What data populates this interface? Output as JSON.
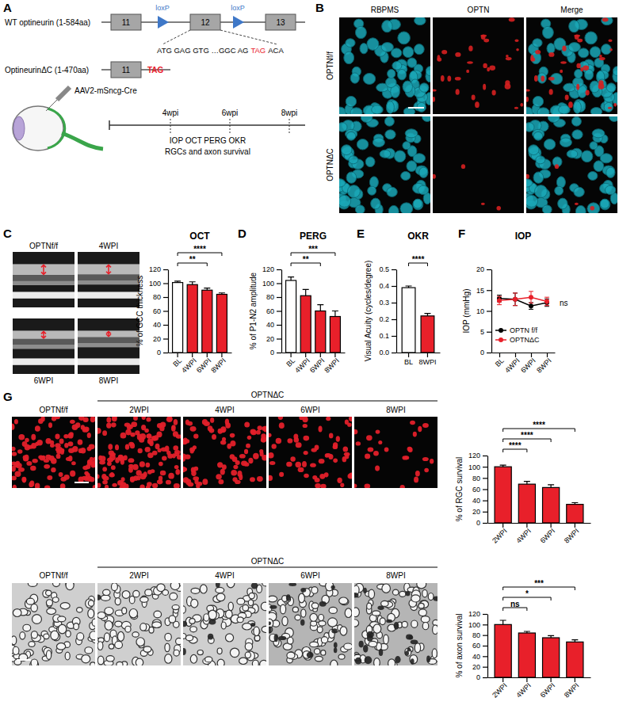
{
  "figure": {
    "panel_labels": [
      "A",
      "B",
      "C",
      "D",
      "E",
      "F",
      "G"
    ],
    "A": {
      "wt_label": "WT optineurin (1-584aa)",
      "exons": [
        "11",
        "12",
        "13"
      ],
      "loxp": "loxP",
      "sequence": "ATG GAG GTG …GGC AG",
      "stop": "TAG",
      "after_stop": "ACA",
      "dc_label": "OptineurinΔC (1-470aa)",
      "dc_exon": "11",
      "dc_stop": "TAG",
      "virus": "AAV2-mSncg-Cre",
      "timepoints": [
        "4wpi",
        "6wpi",
        "8wpi"
      ],
      "assays": "IOP OCT PERG OKR",
      "survival": "RGCs and axon survival"
    },
    "B": {
      "columns": [
        "RBPMS",
        "OPTN",
        "Merge"
      ],
      "rows": [
        "OPTNf/f",
        "OPTNΔC"
      ]
    },
    "C_images": [
      "OPTNf/f",
      "4WPI",
      "6WPI",
      "8WPI"
    ],
    "G": {
      "group": "OPTNΔC",
      "columns": [
        "OPTNf/f",
        "2WPI",
        "4WPI",
        "6WPI",
        "8WPI"
      ]
    }
  },
  "chart_data": [
    {
      "type": "bar",
      "title": "OCT",
      "y_label": "% of GCC thickness",
      "categories": [
        "BL",
        "4WPI",
        "6WPI",
        "8WPI"
      ],
      "values": [
        101,
        98,
        90,
        84
      ],
      "errors": [
        2,
        4,
        3,
        2
      ],
      "colors": [
        "#ffffff",
        "#e8202a",
        "#e8202a",
        "#e8202a"
      ],
      "ylim": [
        0,
        120
      ],
      "yticks": [
        0,
        20,
        40,
        60,
        80,
        100,
        120
      ],
      "annotations": [
        {
          "text": "**",
          "from": "BL",
          "to": "6WPI"
        },
        {
          "text": "****",
          "from": "BL",
          "to": "8WPI"
        }
      ]
    },
    {
      "type": "bar",
      "title": "PERG",
      "y_label": "% of P1-N2 amplitude",
      "categories": [
        "BL",
        "4WPI",
        "6WPI",
        "8WPI"
      ],
      "values": [
        104,
        82,
        60,
        52
      ],
      "errors": [
        5,
        9,
        9,
        8
      ],
      "colors": [
        "#ffffff",
        "#e8202a",
        "#e8202a",
        "#e8202a"
      ],
      "ylim": [
        0,
        120
      ],
      "yticks": [
        0,
        20,
        40,
        60,
        80,
        100,
        120
      ],
      "annotations": [
        {
          "text": "**",
          "from": "BL",
          "to": "6WPI"
        },
        {
          "text": "***",
          "from": "BL",
          "to": "8WPI"
        }
      ]
    },
    {
      "type": "bar",
      "title": "OKR",
      "y_label": "Visual Acuity (cycles/degree)",
      "categories": [
        "BL",
        "8WPI"
      ],
      "values": [
        0.39,
        0.22
      ],
      "errors": [
        0.01,
        0.015
      ],
      "colors": [
        "#ffffff",
        "#e8202a"
      ],
      "ylim": [
        0,
        0.5
      ],
      "yticks": [
        {
          "value": 0,
          "label": "0.0"
        },
        0.1,
        0.2,
        0.3,
        0.4,
        0.5
      ],
      "annotations": [
        {
          "text": "****",
          "from": "BL",
          "to": "8WPI"
        }
      ]
    },
    {
      "type": "line",
      "title": "IOP",
      "y_label": "IOP (mmHg)",
      "categories": [
        "BL",
        "4WPI",
        "6WPI",
        "8WPI"
      ],
      "series": [
        {
          "name": "OPTN f/f",
          "color": "#000000",
          "marker": "circle",
          "values": [
            13,
            12.8,
            11.2,
            12
          ],
          "errors": [
            0.8,
            1.5,
            0.8,
            0.9
          ]
        },
        {
          "name": "OPTNΔC",
          "color": "#e8202a",
          "marker": "circle",
          "values": [
            12.5,
            12.8,
            13.3,
            12.3
          ],
          "errors": [
            1,
            1.5,
            1.4,
            1
          ]
        }
      ],
      "ylim": [
        0,
        20
      ],
      "yticks": [
        0,
        5,
        10,
        15,
        20
      ],
      "legend": "bottom",
      "annotations": [
        {
          "text": "ns"
        }
      ]
    },
    {
      "type": "bar",
      "y_label": "% of RGC survival",
      "categories": [
        "2WPI",
        "4WPI",
        "6WPI",
        "8WPI"
      ],
      "values": [
        100,
        69,
        63,
        33
      ],
      "errors": [
        3,
        5,
        5,
        3
      ],
      "colors": [
        "#e8202a",
        "#e8202a",
        "#e8202a",
        "#e8202a"
      ],
      "ylim": [
        0,
        120
      ],
      "yticks": [
        0,
        20,
        40,
        60,
        80,
        100,
        120
      ],
      "annotations": [
        {
          "text": "****",
          "from": "2WPI",
          "to": "4WPI"
        },
        {
          "text": "****",
          "from": "2WPI",
          "to": "6WPI"
        },
        {
          "text": "****",
          "from": "2WPI",
          "to": "8WPI"
        }
      ]
    },
    {
      "type": "bar",
      "y_label": "% of axon survival",
      "categories": [
        "2WPI",
        "4WPI",
        "6WPI",
        "8WPI"
      ],
      "values": [
        100,
        84,
        75,
        67
      ],
      "errors": [
        8,
        3,
        4,
        4
      ],
      "colors": [
        "#e8202a",
        "#e8202a",
        "#e8202a",
        "#e8202a"
      ],
      "ylim": [
        0,
        120
      ],
      "yticks": [
        0,
        20,
        40,
        60,
        80,
        100,
        120
      ],
      "annotations": [
        {
          "text": "ns",
          "from": "2WPI",
          "to": "4WPI"
        },
        {
          "text": "*",
          "from": "2WPI",
          "to": "6WPI"
        },
        {
          "text": "***",
          "from": "2WPI",
          "to": "8WPI"
        }
      ]
    }
  ]
}
